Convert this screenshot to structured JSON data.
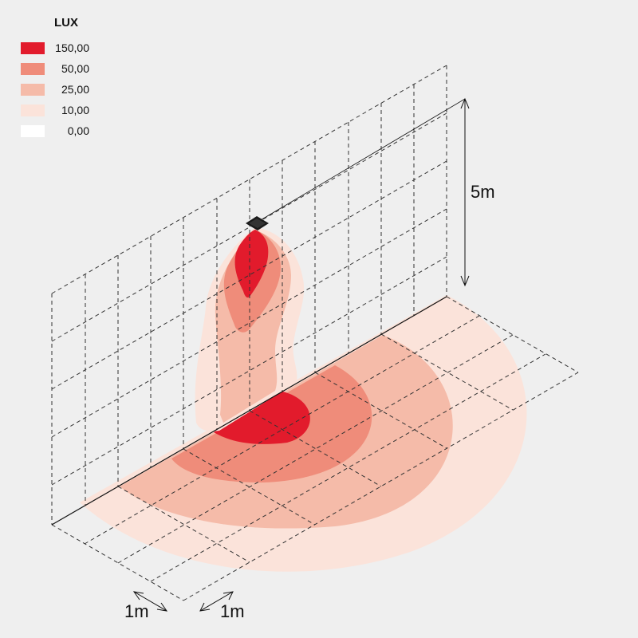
{
  "legend": {
    "title": "LUX",
    "levels": [
      {
        "value": "150,00",
        "color": "#e21b2c"
      },
      {
        "value": "50,00",
        "color": "#ef8c7a"
      },
      {
        "value": "25,00",
        "color": "#f5bba9"
      },
      {
        "value": "10,00",
        "color": "#fbe3da"
      },
      {
        "value": "0,00",
        "color": "#ffffff"
      }
    ]
  },
  "dimensions": {
    "height": "5m",
    "grid_x": "1m",
    "grid_y": "1m"
  },
  "colors": {
    "background": "#efefef",
    "grid_line": "#333333",
    "fixture": "#1a1a1a"
  }
}
